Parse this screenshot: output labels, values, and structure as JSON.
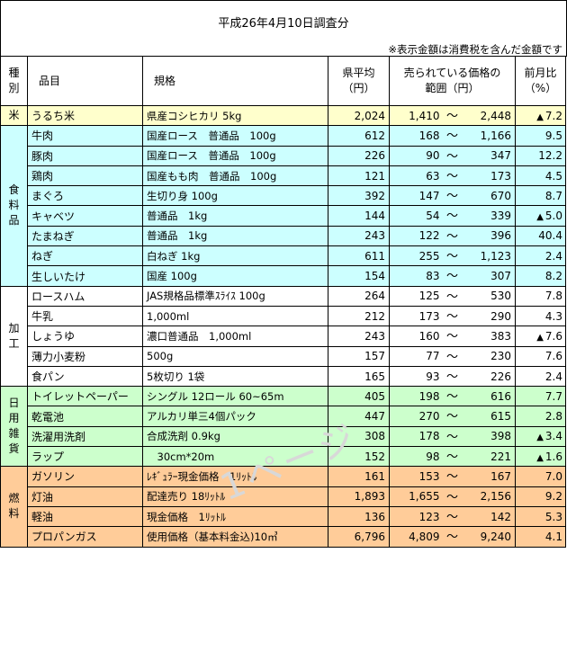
{
  "title": "平成26年4月10日調査分",
  "note": "※表示金額は消費税を含んだ金額です",
  "headers": {
    "category": "種\n別",
    "item": "品目",
    "spec": "規格",
    "avg": "県平均\n（円）",
    "range": "売られている価格の\n範囲（円）",
    "ratio": "前月比\n（%）"
  },
  "tilde": "～",
  "up_mark": "▲",
  "watermark": "1ページ",
  "groups": [
    {
      "label": "米",
      "rows": [
        {
          "item": "うるち米",
          "spec": "県産コシヒカリ 5kg",
          "avg": "2,024",
          "low": "1,410",
          "high": "2,448",
          "up": true,
          "ratio": "7.2"
        }
      ]
    },
    {
      "label": "食\n料\n品",
      "rows": [
        {
          "item": "牛肉",
          "spec": "国産ロース　普通品　100g",
          "avg": "612",
          "low": "168",
          "high": "1,166",
          "up": false,
          "ratio": "9.5"
        },
        {
          "item": "豚肉",
          "spec": "国産ロース　普通品　100g",
          "avg": "226",
          "low": "90",
          "high": "347",
          "up": false,
          "ratio": "12.2"
        },
        {
          "item": "鶏肉",
          "spec": "国産もも肉　普通品　100g",
          "avg": "121",
          "low": "63",
          "high": "173",
          "up": false,
          "ratio": "4.5"
        },
        {
          "item": "まぐろ",
          "spec": "生切り身 100g",
          "avg": "392",
          "low": "147",
          "high": "670",
          "up": false,
          "ratio": "8.7"
        },
        {
          "item": "キャベツ",
          "spec": "普通品　1kg",
          "avg": "144",
          "low": "54",
          "high": "339",
          "up": true,
          "ratio": "5.0"
        },
        {
          "item": "たまねぎ",
          "spec": "普通品　1kg",
          "avg": "243",
          "low": "122",
          "high": "396",
          "up": false,
          "ratio": "40.4"
        },
        {
          "item": "ねぎ",
          "spec": "白ねぎ 1kg",
          "avg": "611",
          "low": "255",
          "high": "1,123",
          "up": false,
          "ratio": "2.4"
        },
        {
          "item": "生しいたけ",
          "spec": "国産 100g",
          "avg": "154",
          "low": "83",
          "high": "307",
          "up": false,
          "ratio": "8.2"
        }
      ]
    },
    {
      "label": "加\n工",
      "rows": [
        {
          "item": "ロースハム",
          "spec": "JAS規格品標準ｽﾗｲｽ 100g",
          "avg": "264",
          "low": "125",
          "high": "530",
          "up": false,
          "ratio": "7.8"
        },
        {
          "item": "牛乳",
          "spec": "1,000ml",
          "avg": "212",
          "low": "173",
          "high": "290",
          "up": false,
          "ratio": "4.3"
        },
        {
          "item": "しょうゆ",
          "spec": "濃口普通品　1,000ml",
          "avg": "243",
          "low": "160",
          "high": "383",
          "up": true,
          "ratio": "7.6"
        },
        {
          "item": "薄力小麦粉",
          "spec": "500g",
          "avg": "157",
          "low": "77",
          "high": "230",
          "up": false,
          "ratio": "7.6"
        },
        {
          "item": "食パン",
          "spec": "5枚切り 1袋",
          "avg": "165",
          "low": "93",
          "high": "226",
          "up": false,
          "ratio": "2.4"
        }
      ]
    },
    {
      "label": "日\n用\n雑\n貨",
      "rows": [
        {
          "item": "トイレットペーパー",
          "spec": "シングル 12ロール 60~65m",
          "avg": "405",
          "low": "198",
          "high": "616",
          "up": false,
          "ratio": "7.7"
        },
        {
          "item": "乾電池",
          "spec": "アルカリ単三4個パック",
          "avg": "447",
          "low": "270",
          "high": "615",
          "up": false,
          "ratio": "2.8"
        },
        {
          "item": "洗濯用洗剤",
          "spec": "合成洗剤 0.9kg",
          "avg": "308",
          "low": "178",
          "high": "398",
          "up": true,
          "ratio": "3.4"
        },
        {
          "item": "ラップ",
          "spec": "　30cm*20m",
          "avg": "152",
          "low": "98",
          "high": "221",
          "up": true,
          "ratio": "1.6"
        }
      ]
    },
    {
      "label": "燃\n料",
      "rows": [
        {
          "item": "ガソリン",
          "spec": "ﾚｷﾞｭﾗｰ現金価格　1ﾘｯﾄﾙ",
          "avg": "161",
          "low": "153",
          "high": "167",
          "up": false,
          "ratio": "7.0"
        },
        {
          "item": "灯油",
          "spec": "配達売り 18ﾘｯﾄﾙ",
          "avg": "1,893",
          "low": "1,655",
          "high": "2,156",
          "up": false,
          "ratio": "9.2"
        },
        {
          "item": "軽油",
          "spec": "現金価格　1ﾘｯﾄﾙ",
          "avg": "136",
          "low": "123",
          "high": "142",
          "up": false,
          "ratio": "5.3"
        },
        {
          "item": "プロパンガス",
          "spec": "使用価格（基本料金込)10㎥",
          "avg": "6,796",
          "low": "4,809",
          "high": "9,240",
          "up": false,
          "ratio": "4.1"
        }
      ]
    }
  ]
}
